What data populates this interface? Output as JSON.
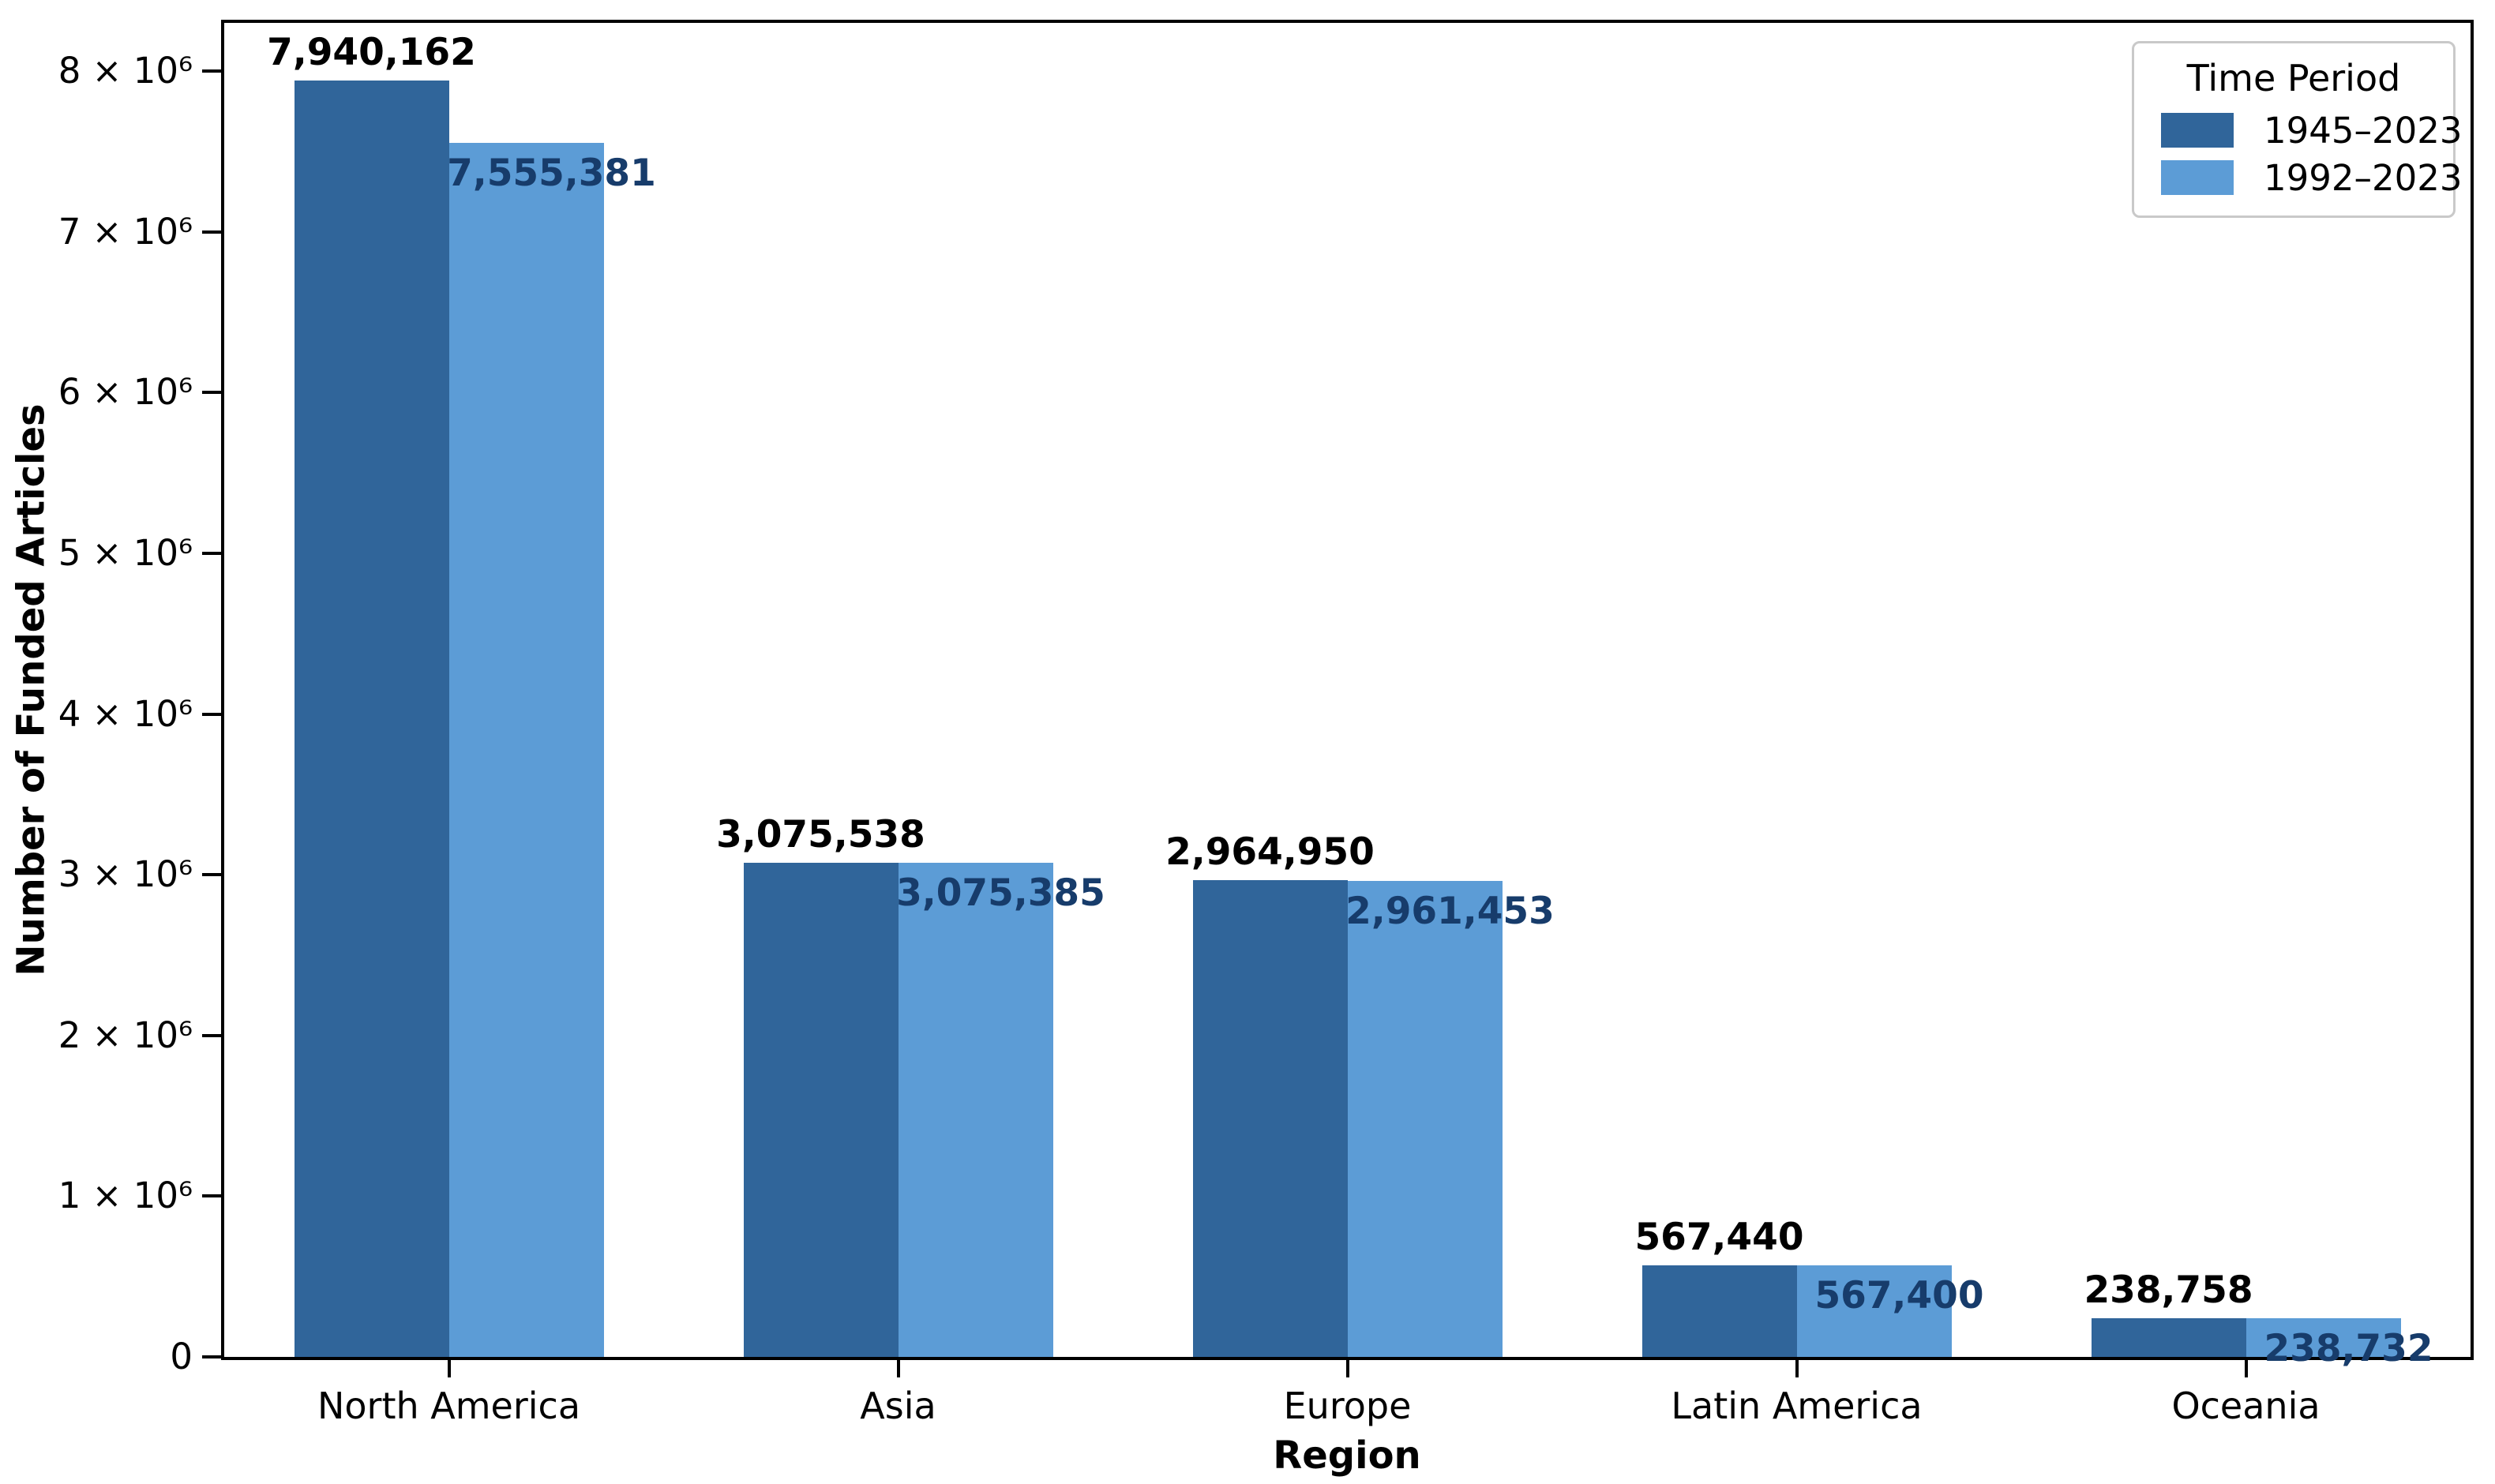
{
  "figure": {
    "background": "#ffffff",
    "frame_color": "#000000"
  },
  "chart_data": {
    "type": "bar",
    "title": "",
    "xlabel": "Region",
    "ylabel": "Number of Funded Articles",
    "categories": [
      "North America",
      "Asia",
      "Europe",
      "Latin America",
      "Oceania"
    ],
    "series": [
      {
        "name": "1945–2023",
        "color": "#30659A",
        "label_color": "#000000",
        "values": [
          7940162,
          3075538,
          2964950,
          567440,
          238758
        ],
        "labels": [
          "7,940,162",
          "3,075,538",
          "2,964,950",
          "567,440",
          "238,758"
        ]
      },
      {
        "name": "1992–2023",
        "color": "#5C9CD6",
        "label_color": "#173C6B",
        "values": [
          7555381,
          3075385,
          2961453,
          567400,
          238732
        ],
        "labels": [
          "7,555,381",
          "3,075,385",
          "2,961,453",
          "567,400",
          "238,732"
        ]
      }
    ],
    "ylim": [
      0,
      8300000
    ],
    "yticks": [
      {
        "value": 0,
        "label": "0"
      },
      {
        "value": 1000000,
        "label": "1 × 10⁶"
      },
      {
        "value": 2000000,
        "label": "2 × 10⁶"
      },
      {
        "value": 3000000,
        "label": "3 × 10⁶"
      },
      {
        "value": 4000000,
        "label": "4 × 10⁶"
      },
      {
        "value": 5000000,
        "label": "5 × 10⁶"
      },
      {
        "value": 6000000,
        "label": "6 × 10⁶"
      },
      {
        "value": 7000000,
        "label": "7 × 10⁶"
      },
      {
        "value": 8000000,
        "label": "8 × 10⁶"
      }
    ],
    "grid": false,
    "legend": {
      "title": "Time Period",
      "position": "upper right"
    }
  }
}
